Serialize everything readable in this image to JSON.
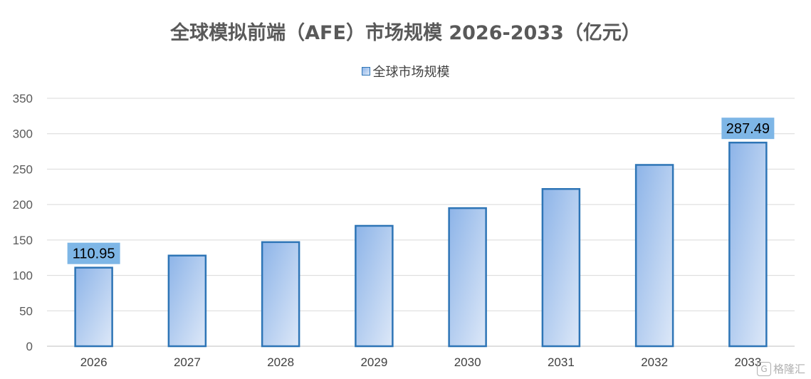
{
  "chart_data": {
    "type": "bar",
    "title": "全球模拟前端（AFE）市场规模 2026-2033（亿元）",
    "categories": [
      "2026",
      "2027",
      "2028",
      "2029",
      "2030",
      "2031",
      "2032",
      "2033"
    ],
    "series": [
      {
        "name": "全球市场规模",
        "values": [
          110.95,
          128,
          147,
          170,
          195,
          222,
          256,
          287.49
        ]
      }
    ],
    "data_labels": [
      {
        "category": "2026",
        "text": "110.95"
      },
      {
        "category": "2033",
        "text": "287.49"
      }
    ],
    "ylim": [
      0,
      350
    ],
    "yticks": [
      0,
      50,
      100,
      150,
      200,
      250,
      300,
      350
    ],
    "xlabel": "",
    "ylabel": "",
    "grid": true,
    "legend_position": "top-center",
    "colors": {
      "bar_border": "#2E75B6",
      "bar_fill_start": "#8DB4E8",
      "bar_fill_end": "#DDE8F8",
      "label_bg": "#7EB6E6",
      "grid": "#D9D9D9",
      "axis": "#BFBFBF"
    }
  },
  "watermark": {
    "text": "格隆汇",
    "icon": "G"
  }
}
